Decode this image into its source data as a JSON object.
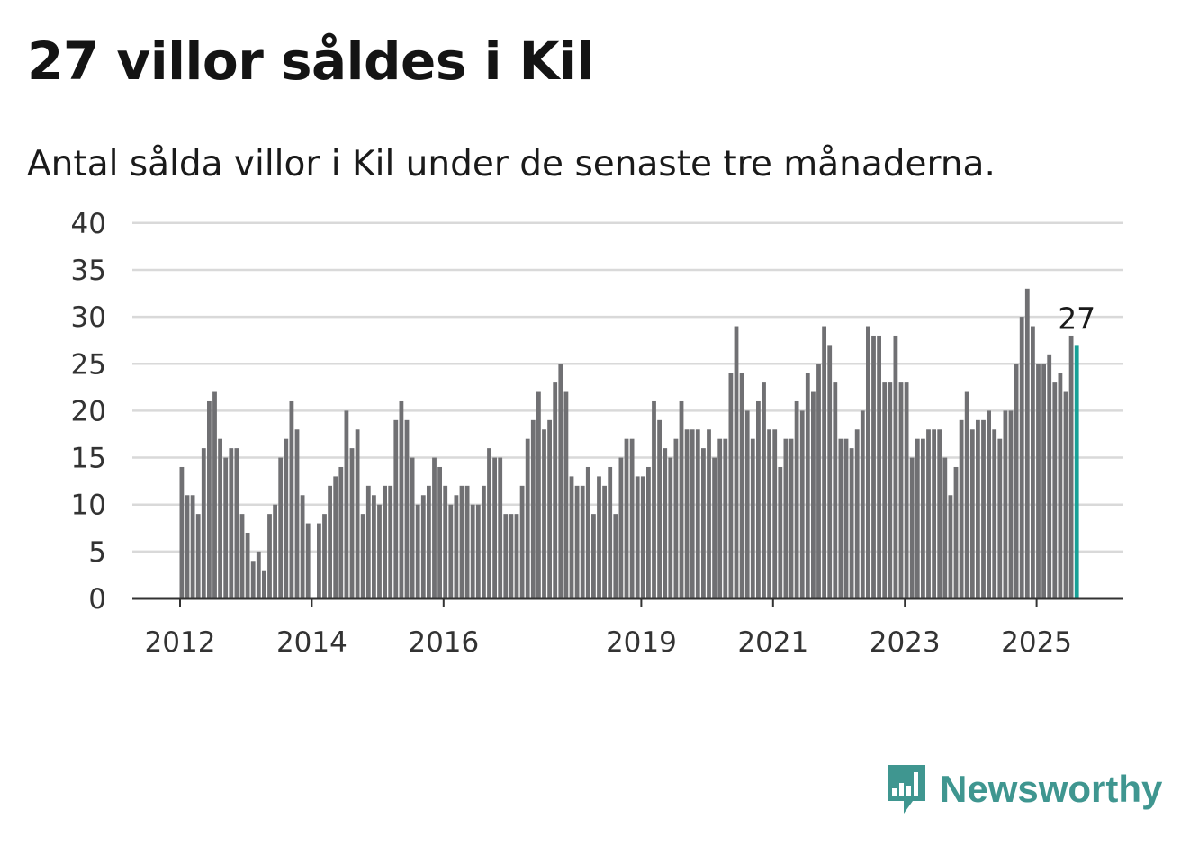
{
  "title": "27 villor såldes i Kil",
  "subtitle": "Antal sålda villor i Kil under de senaste tre månaderna.",
  "brand": {
    "name": "Newsworthy",
    "icon": "newsworthy-logo-icon"
  },
  "colors": {
    "bar": "#707073",
    "highlight": "#17a096",
    "grid": "#d9d9d9",
    "axis": "#333333",
    "brand": "#3f9690"
  },
  "chart_data": {
    "type": "bar",
    "start": "2012-01",
    "ylim": [
      0,
      40
    ],
    "yticks": [
      "0",
      "5",
      "10",
      "15",
      "20",
      "25",
      "30",
      "35",
      "40"
    ],
    "xticks": [
      "2012",
      "2014",
      "2016",
      "2019",
      "2021",
      "2023",
      "2025"
    ],
    "grid": true,
    "highlight_label": "27",
    "values": [
      14,
      11,
      11,
      9,
      16,
      21,
      22,
      17,
      15,
      16,
      16,
      9,
      7,
      4,
      5,
      3,
      9,
      10,
      15,
      17,
      21,
      18,
      11,
      8,
      0,
      8,
      9,
      12,
      13,
      14,
      20,
      16,
      18,
      9,
      12,
      11,
      10,
      12,
      12,
      19,
      21,
      19,
      15,
      10,
      11,
      12,
      15,
      14,
      12,
      10,
      11,
      12,
      12,
      10,
      10,
      12,
      16,
      15,
      15,
      9,
      9,
      9,
      12,
      17,
      19,
      22,
      18,
      19,
      23,
      25,
      22,
      13,
      12,
      12,
      14,
      9,
      13,
      12,
      14,
      9,
      15,
      17,
      17,
      13,
      13,
      14,
      21,
      19,
      16,
      15,
      17,
      21,
      18,
      18,
      18,
      16,
      18,
      15,
      17,
      17,
      24,
      29,
      24,
      20,
      17,
      21,
      23,
      18,
      18,
      14,
      17,
      17,
      21,
      20,
      24,
      22,
      25,
      29,
      27,
      23,
      17,
      17,
      16,
      18,
      20,
      29,
      28,
      28,
      23,
      23,
      28,
      23,
      23,
      15,
      17,
      17,
      18,
      18,
      18,
      15,
      11,
      14,
      19,
      22,
      18,
      19,
      19,
      20,
      18,
      17,
      20,
      20,
      25,
      30,
      33,
      29,
      25,
      25,
      26,
      23,
      24,
      22,
      28,
      27
    ]
  }
}
